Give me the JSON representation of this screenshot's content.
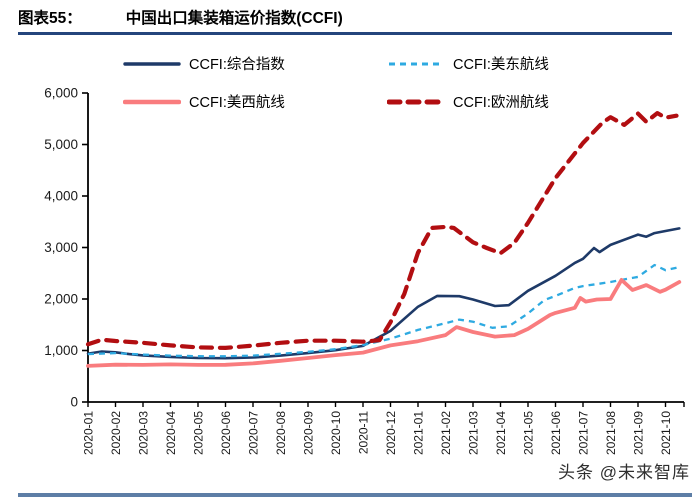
{
  "header": {
    "label": "图表55：",
    "title": "中国出口集装箱运价指数(CCFI)"
  },
  "watermark": "头条 @未来智库",
  "colors": {
    "title_rule": "#24457C",
    "bottom_bar": "#5D7EA6",
    "axis": "#000000",
    "tick_text": "#1A1A1A"
  },
  "chart_data": {
    "type": "line",
    "title": "中国出口集装箱运价指数(CCFI)",
    "xlabel": "",
    "ylabel": "",
    "grid": false,
    "legend_position": "top",
    "ylim": [
      0,
      6000
    ],
    "y_ticks": [
      {
        "v": 0,
        "label": "0"
      },
      {
        "v": 1000,
        "label": "1,000"
      },
      {
        "v": 2000,
        "label": "2,000"
      },
      {
        "v": 3000,
        "label": "3,000"
      },
      {
        "v": 4000,
        "label": "4,000"
      },
      {
        "v": 5000,
        "label": "5,000"
      },
      {
        "v": 6000,
        "label": "6,000"
      }
    ],
    "x_labels": [
      "2020-01",
      "2020-02",
      "2020-03",
      "2020-04",
      "2020-05",
      "2020-06",
      "2020-07",
      "2020-08",
      "2020-09",
      "2020-10",
      "2020-11",
      "2020-12",
      "2021-01",
      "2021-02",
      "2021-03",
      "2021-04",
      "2021-05",
      "2021-06",
      "2021-07",
      "2021-08",
      "2021-09",
      "2021-10"
    ],
    "series": [
      {
        "name": "CCFI:综合指数",
        "color": "#1E3A68",
        "dash": "",
        "linecap": "round",
        "width": 2.6,
        "points": [
          [
            0,
            940
          ],
          [
            0.5,
            980
          ],
          [
            1,
            965
          ],
          [
            1.5,
            930
          ],
          [
            2,
            905
          ],
          [
            3,
            875
          ],
          [
            4,
            855
          ],
          [
            5,
            850
          ],
          [
            6,
            865
          ],
          [
            7,
            900
          ],
          [
            8,
            950
          ],
          [
            9,
            1005
          ],
          [
            10,
            1090
          ],
          [
            11,
            1380
          ],
          [
            12,
            1850
          ],
          [
            12.7,
            2060
          ],
          [
            13.5,
            2055
          ],
          [
            14,
            1990
          ],
          [
            14.8,
            1865
          ],
          [
            15.3,
            1880
          ],
          [
            16,
            2160
          ],
          [
            17,
            2450
          ],
          [
            17.7,
            2700
          ],
          [
            18,
            2780
          ],
          [
            18.4,
            2990
          ],
          [
            18.6,
            2910
          ],
          [
            19,
            3050
          ],
          [
            20,
            3250
          ],
          [
            20.3,
            3210
          ],
          [
            20.6,
            3280
          ],
          [
            21,
            3320
          ],
          [
            21.5,
            3370
          ]
        ]
      },
      {
        "name": "CCFI:美东航线",
        "color": "#2EAAE1",
        "dash": "6 5",
        "linecap": "butt",
        "width": 2.3,
        "points": [
          [
            0,
            930
          ],
          [
            1,
            950
          ],
          [
            2,
            920
          ],
          [
            3,
            900
          ],
          [
            4,
            890
          ],
          [
            5,
            888
          ],
          [
            6,
            900
          ],
          [
            7,
            935
          ],
          [
            8,
            975
          ],
          [
            9,
            1025
          ],
          [
            10,
            1105
          ],
          [
            11,
            1230
          ],
          [
            12,
            1400
          ],
          [
            13,
            1530
          ],
          [
            13.5,
            1600
          ],
          [
            14,
            1560
          ],
          [
            14.7,
            1440
          ],
          [
            15.3,
            1470
          ],
          [
            16,
            1720
          ],
          [
            16.6,
            1980
          ],
          [
            17,
            2060
          ],
          [
            17.7,
            2215
          ],
          [
            18,
            2250
          ],
          [
            18.5,
            2290
          ],
          [
            19,
            2330
          ],
          [
            19.5,
            2380
          ],
          [
            20,
            2430
          ],
          [
            20.6,
            2660
          ],
          [
            21,
            2560
          ],
          [
            21.5,
            2620
          ]
        ]
      },
      {
        "name": "CCFI:美西航线",
        "color": "#F97C7E",
        "dash": "",
        "linecap": "round",
        "width": 3.8,
        "points": [
          [
            0,
            700
          ],
          [
            1,
            725
          ],
          [
            2,
            720
          ],
          [
            3,
            730
          ],
          [
            4,
            720
          ],
          [
            5,
            722
          ],
          [
            6,
            750
          ],
          [
            7,
            800
          ],
          [
            8,
            855
          ],
          [
            9,
            910
          ],
          [
            10,
            960
          ],
          [
            11,
            1100
          ],
          [
            12,
            1180
          ],
          [
            13,
            1300
          ],
          [
            13.4,
            1455
          ],
          [
            14,
            1360
          ],
          [
            14.8,
            1270
          ],
          [
            15.5,
            1300
          ],
          [
            16,
            1420
          ],
          [
            16.8,
            1690
          ],
          [
            17,
            1730
          ],
          [
            17.7,
            1830
          ],
          [
            17.9,
            2020
          ],
          [
            18.1,
            1950
          ],
          [
            18.5,
            1990
          ],
          [
            19,
            2000
          ],
          [
            19.4,
            2370
          ],
          [
            19.8,
            2175
          ],
          [
            20.3,
            2270
          ],
          [
            20.8,
            2140
          ],
          [
            21,
            2180
          ],
          [
            21.5,
            2330
          ]
        ]
      },
      {
        "name": "CCFI:欧洲航线",
        "color": "#B20E11",
        "dash": "11 8",
        "linecap": "round",
        "width": 4.2,
        "points": [
          [
            0,
            1120
          ],
          [
            0.5,
            1210
          ],
          [
            1,
            1185
          ],
          [
            2,
            1150
          ],
          [
            3,
            1100
          ],
          [
            4,
            1060
          ],
          [
            5,
            1050
          ],
          [
            6,
            1095
          ],
          [
            7,
            1150
          ],
          [
            8,
            1190
          ],
          [
            9,
            1190
          ],
          [
            10,
            1170
          ],
          [
            10.6,
            1200
          ],
          [
            11,
            1550
          ],
          [
            11.5,
            2100
          ],
          [
            12,
            2900
          ],
          [
            12.5,
            3380
          ],
          [
            13,
            3400
          ],
          [
            13.3,
            3380
          ],
          [
            14,
            3100
          ],
          [
            14.5,
            2990
          ],
          [
            15,
            2890
          ],
          [
            15.5,
            3090
          ],
          [
            16,
            3480
          ],
          [
            17,
            4350
          ],
          [
            18,
            5030
          ],
          [
            18.7,
            5420
          ],
          [
            19,
            5530
          ],
          [
            19.5,
            5380
          ],
          [
            20,
            5600
          ],
          [
            20.3,
            5440
          ],
          [
            20.7,
            5610
          ],
          [
            21,
            5520
          ],
          [
            21.4,
            5560
          ]
        ]
      }
    ]
  }
}
